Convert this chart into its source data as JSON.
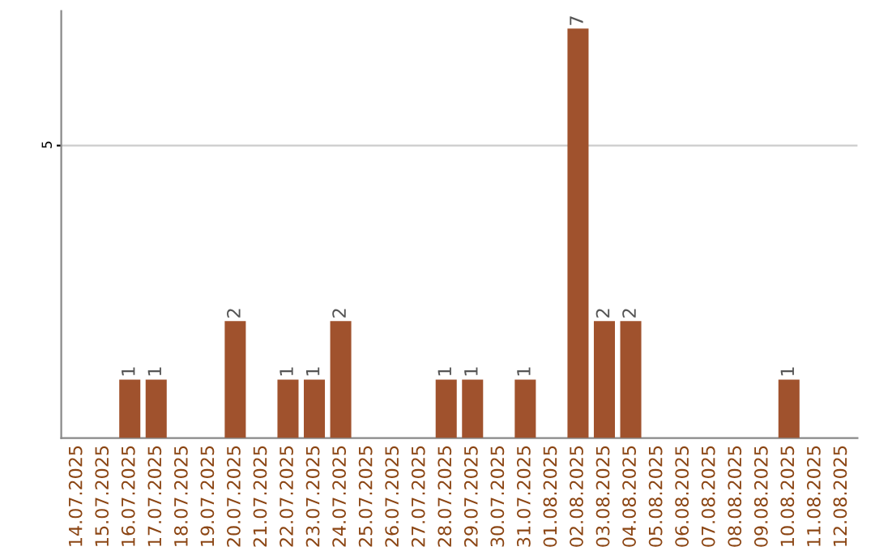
{
  "chart_data": {
    "type": "bar",
    "categories": [
      "14.07.2025",
      "15.07.2025",
      "16.07.2025",
      "17.07.2025",
      "18.07.2025",
      "19.07.2025",
      "20.07.2025",
      "21.07.2025",
      "22.07.2025",
      "23.07.2025",
      "24.07.2025",
      "25.07.2025",
      "26.07.2025",
      "27.07.2025",
      "28.07.2025",
      "29.07.2025",
      "30.07.2025",
      "31.07.2025",
      "01.08.2025",
      "02.08.2025",
      "03.08.2025",
      "04.08.2025",
      "05.08.2025",
      "06.08.2025",
      "07.08.2025",
      "08.08.2025",
      "09.08.2025",
      "10.08.2025",
      "11.08.2025",
      "12.08.2025"
    ],
    "values": [
      0,
      0,
      1,
      1,
      0,
      0,
      2,
      0,
      1,
      1,
      2,
      0,
      0,
      0,
      1,
      1,
      0,
      1,
      0,
      7,
      2,
      2,
      0,
      0,
      0,
      0,
      0,
      1,
      0,
      0
    ],
    "value_labels": [
      null,
      null,
      "1",
      "1",
      null,
      null,
      "2",
      null,
      "1",
      "1",
      "2",
      null,
      null,
      null,
      "1",
      "1",
      null,
      "1",
      null,
      "7",
      "2",
      "2",
      null,
      null,
      null,
      null,
      null,
      "1",
      null,
      null
    ],
    "color": "#a0522d",
    "ylim": [
      0,
      7.3
    ],
    "yticks": [
      5
    ],
    "grid": "y"
  }
}
